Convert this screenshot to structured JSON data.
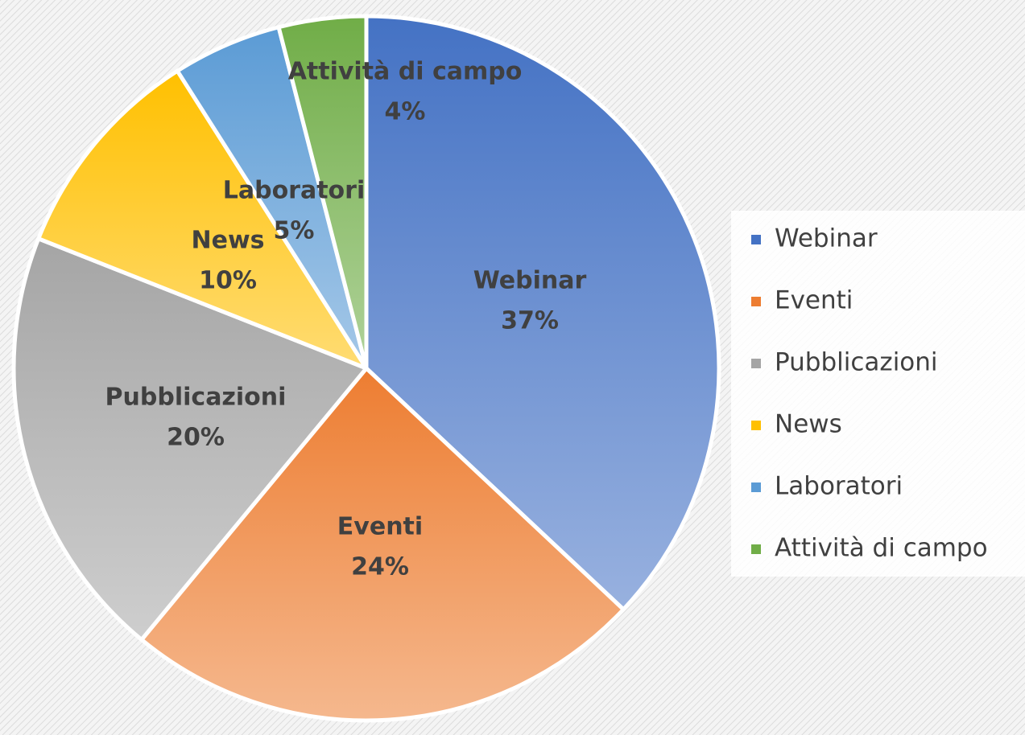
{
  "chart_data": {
    "type": "pie",
    "categories": [
      "Webinar",
      "Eventi",
      "Pubblicazioni",
      "News",
      "Laboratori",
      "Attività di campo"
    ],
    "values": [
      37,
      24,
      20,
      10,
      5,
      4
    ],
    "value_labels": [
      "37%",
      "24%",
      "20%",
      "10%",
      "5%",
      "4%"
    ],
    "colors": [
      "#4472c4",
      "#ed7d31",
      "#a5a5a5",
      "#ffc000",
      "#5b9bd5",
      "#70ad47"
    ],
    "legend": "right"
  }
}
